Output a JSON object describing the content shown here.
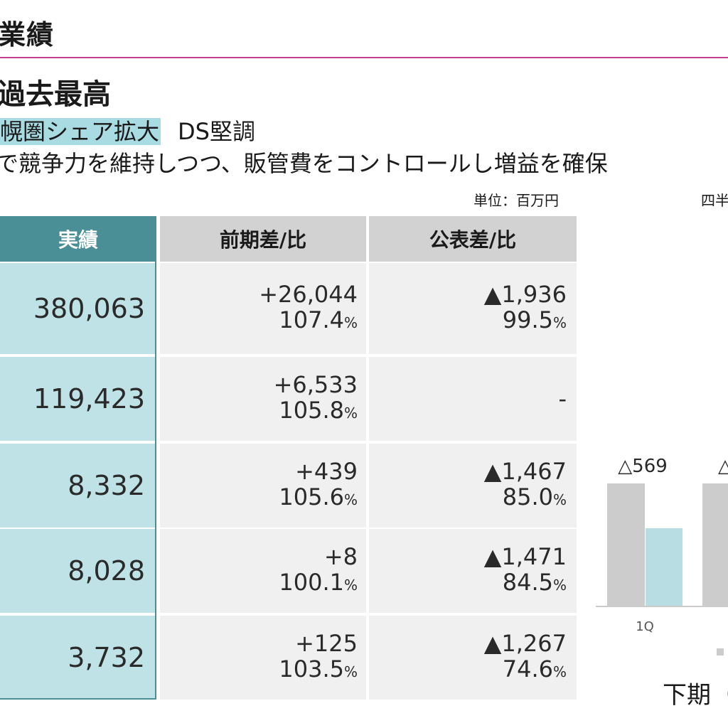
{
  "header": {
    "title": "業績",
    "headline": "過去最高",
    "line2_highlight": "幌圏シェア拡大",
    "line2_rest": "DS堅調",
    "line3": "で競争力を維持しつつ、販管費をコントロールし増益を確保"
  },
  "unit_label": "単位：百万円",
  "quarter_label": "四半",
  "table": {
    "columns": [
      "実績",
      "前期差/比",
      "公表差/比"
    ],
    "rows": [
      {
        "actual": "380,063",
        "prev_diff": "+26,044",
        "prev_ratio": "107.4",
        "fc_diff": "▲1,936",
        "fc_ratio": "99.5"
      },
      {
        "actual": "119,423",
        "prev_diff": "+6,533",
        "prev_ratio": "105.8",
        "fc_diff": "-",
        "fc_ratio": ""
      },
      {
        "actual": "8,332",
        "prev_diff": "+439",
        "prev_ratio": "105.6",
        "fc_diff": "▲1,467",
        "fc_ratio": "85.0"
      },
      {
        "actual": "8,028",
        "prev_diff": "+8",
        "prev_ratio": "100.1",
        "fc_diff": "▲1,471",
        "fc_ratio": "84.5"
      },
      {
        "actual": "3,732",
        "prev_diff": "+125",
        "prev_ratio": "103.5",
        "fc_diff": "▲1,267",
        "fc_ratio": "74.6"
      }
    ],
    "pct_symbol": "%"
  },
  "chart_data": {
    "type": "bar",
    "categories": [
      "1Q"
    ],
    "series": [
      {
        "values": [
          569
        ],
        "color": "#cccccc"
      },
      {
        "values": [
          null
        ],
        "color": "#b8dee3"
      }
    ],
    "data_labels": [
      "△569",
      "△"
    ],
    "subtitle": "下期（"
  }
}
